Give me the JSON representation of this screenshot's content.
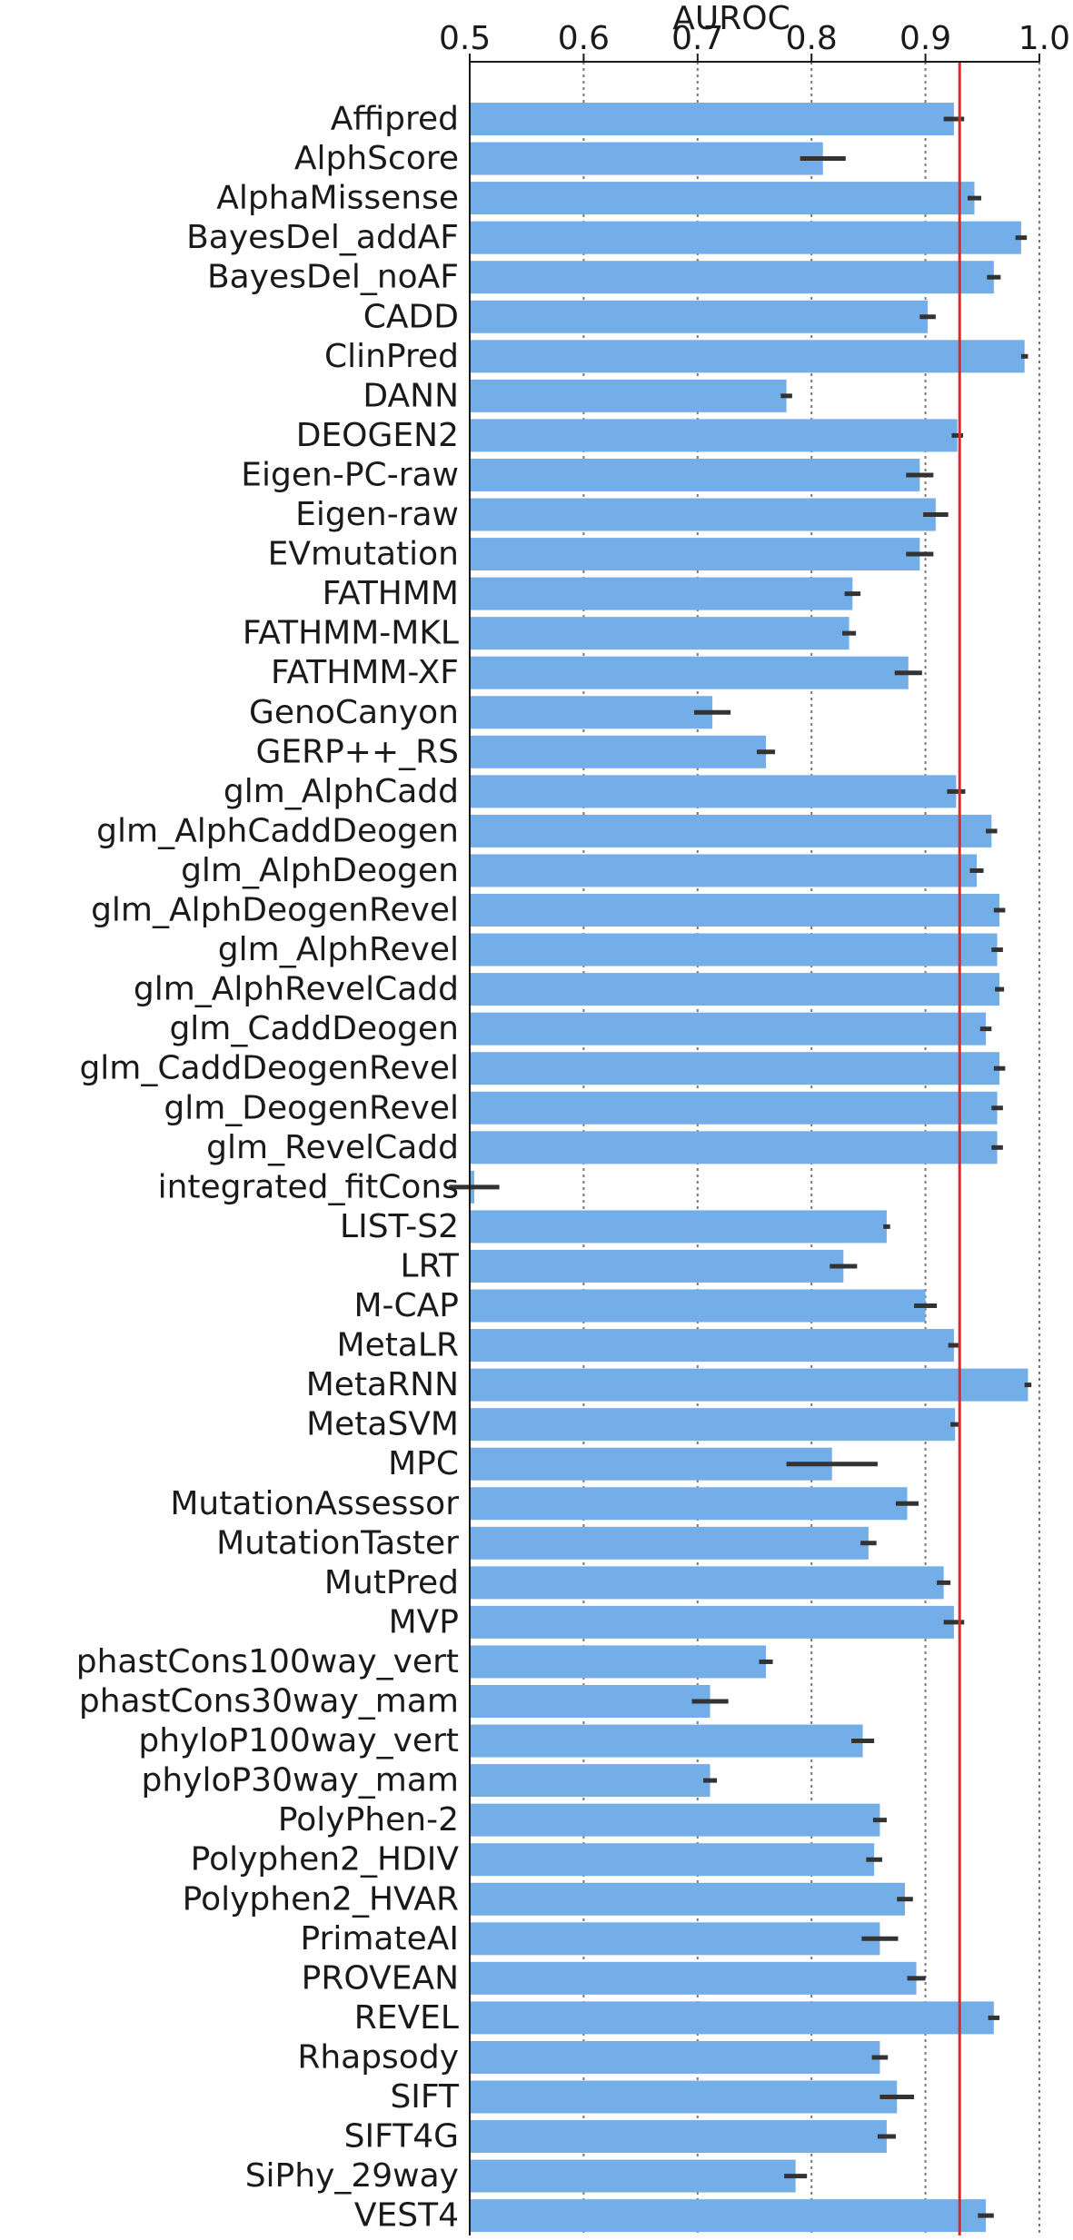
{
  "chart_data": {
    "type": "bar",
    "orientation": "horizontal",
    "xlabel": "AUROC",
    "xlabel_position": "top",
    "xlim": [
      0.5,
      1.0
    ],
    "xticks": [
      0.5,
      0.6,
      0.7,
      0.8,
      0.9,
      1.0
    ],
    "xtick_labels": [
      "0.5",
      "0.6",
      "0.7",
      "0.8",
      "0.9",
      "1.0"
    ],
    "grid": "dotted vertical lines at 0.6, 0.7, 0.8, 0.9, 1.0",
    "reference_line": 0.93,
    "colors": {
      "bar": "#74aee8",
      "error": "#333333",
      "reference": "#e0282b",
      "grid": "#777777"
    },
    "categories": [
      "Affipred",
      "AlphScore",
      "AlphaMissense",
      "BayesDel_addAF",
      "BayesDel_noAF",
      "CADD",
      "ClinPred",
      "DANN",
      "DEOGEN2",
      "Eigen-PC-raw",
      "Eigen-raw",
      "EVmutation",
      "FATHMM",
      "FATHMM-MKL",
      "FATHMM-XF",
      "GenoCanyon",
      "GERP++_RS",
      "glm_AlphCadd",
      "glm_AlphCaddDeogen",
      "glm_AlphDeogen",
      "glm_AlphDeogenRevel",
      "glm_AlphRevel",
      "glm_AlphRevelCadd",
      "glm_CaddDeogen",
      "glm_CaddDeogenRevel",
      "glm_DeogenRevel",
      "glm_RevelCadd",
      "integrated_fitCons",
      "LIST-S2",
      "LRT",
      "M-CAP",
      "MetaLR",
      "MetaRNN",
      "MetaSVM",
      "MPC",
      "MutationAssessor",
      "MutationTaster",
      "MutPred",
      "MVP",
      "phastCons100way_vert",
      "phastCons30way_mam",
      "phyloP100way_vert",
      "phyloP30way_mam",
      "PolyPhen-2",
      "Polyphen2_HDIV",
      "Polyphen2_HVAR",
      "PrimateAI",
      "PROVEAN",
      "REVEL",
      "Rhapsody",
      "SIFT",
      "SIFT4G",
      "SiPhy_29way",
      "VEST4"
    ],
    "values": [
      0.925,
      0.81,
      0.943,
      0.984,
      0.96,
      0.902,
      0.987,
      0.778,
      0.928,
      0.895,
      0.909,
      0.895,
      0.836,
      0.833,
      0.885,
      0.713,
      0.76,
      0.927,
      0.958,
      0.945,
      0.965,
      0.963,
      0.965,
      0.953,
      0.965,
      0.963,
      0.963,
      0.504,
      0.866,
      0.828,
      0.9,
      0.925,
      0.99,
      0.926,
      0.818,
      0.884,
      0.85,
      0.916,
      0.925,
      0.76,
      0.711,
      0.845,
      0.711,
      0.86,
      0.855,
      0.882,
      0.86,
      0.892,
      0.96,
      0.86,
      0.875,
      0.866,
      0.786,
      0.953
    ],
    "errors": [
      0.009,
      0.02,
      0.006,
      0.005,
      0.006,
      0.007,
      0.003,
      0.005,
      0.005,
      0.012,
      0.011,
      0.012,
      0.007,
      0.006,
      0.012,
      0.016,
      0.008,
      0.008,
      0.005,
      0.006,
      0.005,
      0.005,
      0.004,
      0.005,
      0.005,
      0.005,
      0.005,
      0.022,
      0.003,
      0.012,
      0.01,
      0.005,
      0.003,
      0.004,
      0.04,
      0.01,
      0.007,
      0.006,
      0.009,
      0.006,
      0.016,
      0.01,
      0.006,
      0.006,
      0.007,
      0.007,
      0.016,
      0.008,
      0.005,
      0.007,
      0.015,
      0.008,
      0.01,
      0.007
    ]
  }
}
